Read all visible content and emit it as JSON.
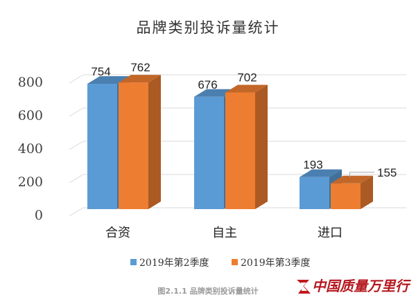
{
  "chart_data": {
    "type": "bar",
    "title": "品牌类别投诉量统计",
    "categories": [
      "合资",
      "自主",
      "进口"
    ],
    "series": [
      {
        "name": "2019年第2季度",
        "values": [
          754,
          676,
          193
        ],
        "color": "#5b9bd5"
      },
      {
        "name": "2019年第3季度",
        "values": [
          762,
          702,
          155
        ],
        "color": "#ed7d31"
      }
    ],
    "yticks": [
      0,
      200,
      400,
      600,
      800
    ],
    "ylim": [
      0,
      800
    ],
    "xlabel": "",
    "ylabel": "",
    "grid": true,
    "legend_position": "bottom",
    "style": "3d-clustered-column"
  },
  "caption": "图2.1.1   品牌类别投诉量统计",
  "logo": {
    "text": "中国质量万里行"
  }
}
